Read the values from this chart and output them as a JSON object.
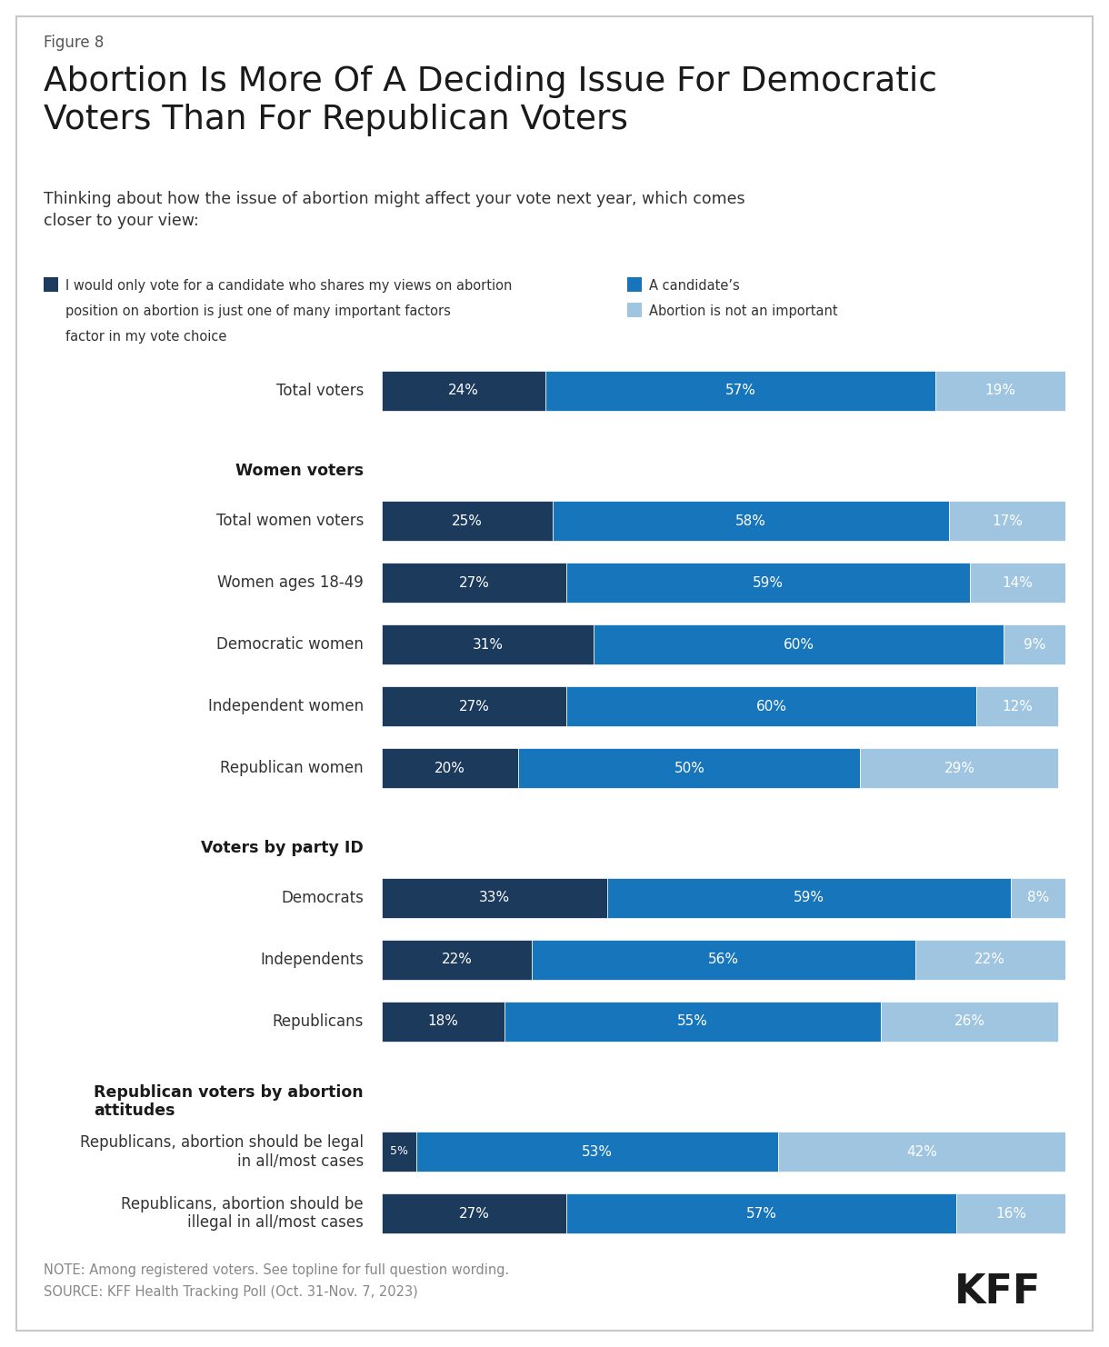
{
  "figure_label": "Figure 8",
  "title_line1": "Abortion Is More Of A Deciding Issue For Democratic",
  "title_line2": "Voters Than For Republican Voters",
  "subtitle_line1": "Thinking about how the issue of abortion might affect your vote next year, which comes",
  "subtitle_line2": "closer to your view:",
  "legend_items": [
    {
      "label": "I would only vote for a candidate who shares my views on abortion",
      "color": "#1b3a5c"
    },
    {
      "label": "A candidate’s position on abortion is just one of many important factors",
      "color": "#1775bc"
    },
    {
      "label": "Abortion is not an important factor in my vote choice",
      "color": "#9fc5e0"
    }
  ],
  "rows": [
    {
      "label": "Total voters",
      "type": "data",
      "values": [
        24,
        57,
        19
      ]
    },
    {
      "label": "Women voters",
      "type": "header",
      "values": null
    },
    {
      "label": "Total women voters",
      "type": "data",
      "values": [
        25,
        58,
        17
      ]
    },
    {
      "label": "Women ages 18-49",
      "type": "data",
      "values": [
        27,
        59,
        14
      ]
    },
    {
      "label": "Democratic women",
      "type": "data",
      "values": [
        31,
        60,
        9
      ]
    },
    {
      "label": "Independent women",
      "type": "data",
      "values": [
        27,
        60,
        12
      ]
    },
    {
      "label": "Republican women",
      "type": "data",
      "values": [
        20,
        50,
        29
      ]
    },
    {
      "label": "Voters by party ID",
      "type": "header",
      "values": null
    },
    {
      "label": "Democrats",
      "type": "data",
      "values": [
        33,
        59,
        8
      ]
    },
    {
      "label": "Independents",
      "type": "data",
      "values": [
        22,
        56,
        22
      ]
    },
    {
      "label": "Republicans",
      "type": "data",
      "values": [
        18,
        55,
        26
      ]
    },
    {
      "label": "Republican voters by abortion\nattitudes",
      "type": "header",
      "values": null
    },
    {
      "label": "Republicans, abortion should be legal\nin all/most cases",
      "type": "data",
      "values": [
        5,
        53,
        42
      ]
    },
    {
      "label": "Republicans, abortion should be\nillegal in all/most cases",
      "type": "data",
      "values": [
        27,
        57,
        16
      ]
    }
  ],
  "colors": [
    "#1b3a5c",
    "#1775bc",
    "#9fc5e0"
  ],
  "note_line1": "NOTE: Among registered voters. See topline for full question wording.",
  "note_line2": "SOURCE: KFF Health Tracking Poll (Oct. 31-Nov. 7, 2023)",
  "bg_color": "#ffffff",
  "border_color": "#c8c8c8"
}
